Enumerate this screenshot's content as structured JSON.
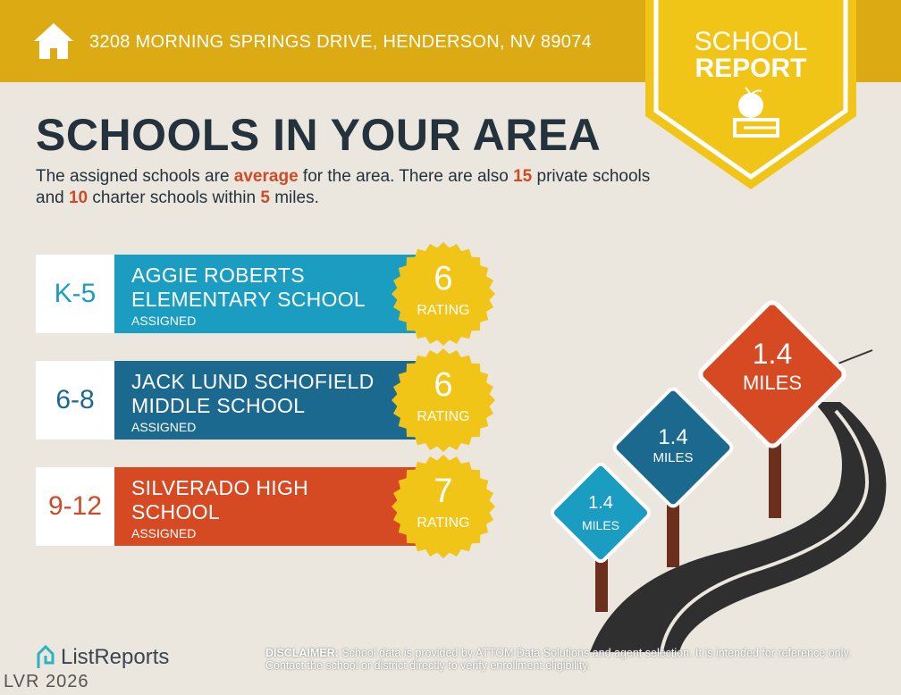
{
  "header": {
    "address": "3208 MORNING SPRINGS DRIVE, HENDERSON, NV 89074",
    "icon": "home-icon"
  },
  "badge": {
    "line1": "SCHOOL",
    "line2": "REPORT",
    "icon": "apple-on-book-icon"
  },
  "title": "SCHOOLS IN YOUR AREA",
  "intro": {
    "p1": "The assigned schools are ",
    "quality": "average",
    "p2": " for the area. There are also ",
    "private_count": "15",
    "p3": " private schools and ",
    "charter_count": "10",
    "p4": " charter schools within ",
    "miles": "5",
    "p5": " miles."
  },
  "schools": [
    {
      "grade": "K-5",
      "name1": "AGGIE ROBERTS",
      "name2": "ELEMENTARY SCHOOL",
      "status": "ASSIGNED",
      "rating": "6",
      "rating_label": "RATING",
      "color": "#1b9dc2",
      "grade_color": "#1b9dc2"
    },
    {
      "grade": "6-8",
      "name1": "JACK LUND SCHOFIELD",
      "name2": "MIDDLE SCHOOL",
      "status": "ASSIGNED",
      "rating": "6",
      "rating_label": "RATING",
      "color": "#1c6990",
      "grade_color": "#1c6990"
    },
    {
      "grade": "9-12",
      "name1": "SILVERADO HIGH",
      "name2": "SCHOOL",
      "status": "ASSIGNED",
      "rating": "7",
      "rating_label": "RATING",
      "color": "#d64a23",
      "grade_color": "#cf4a25"
    }
  ],
  "signs": [
    {
      "distance": "1.4",
      "unit": "MILES"
    },
    {
      "distance": "1.4",
      "unit": "MILES"
    },
    {
      "distance": "1.4",
      "unit": "MILES"
    }
  ],
  "footer": {
    "logo": "ListReports",
    "watermark": "LVR 2026",
    "disclaimer_label": "DISCLAIMER:",
    "disclaimer": " School data is provided by ATTOM Data Solutions and agent selection. It is intended for reference only. Contact the school or district directly to verify enrollment eligibility."
  }
}
